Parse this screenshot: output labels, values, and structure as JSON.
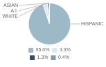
{
  "chart_data": {
    "type": "pie",
    "categories": [
      "HISPANIC",
      "WHITE",
      "A.I.",
      "ASIAN"
    ],
    "values": [
      95.0,
      3.3,
      1.3,
      0.4
    ],
    "value_labels": [
      "95.0%",
      "3.3%",
      "1.3%",
      "0.4%"
    ],
    "colors": [
      "#9db8c7",
      "#dce9ef",
      "#2d4f6e",
      "#7a9fb5"
    ],
    "legend": "bottom"
  }
}
